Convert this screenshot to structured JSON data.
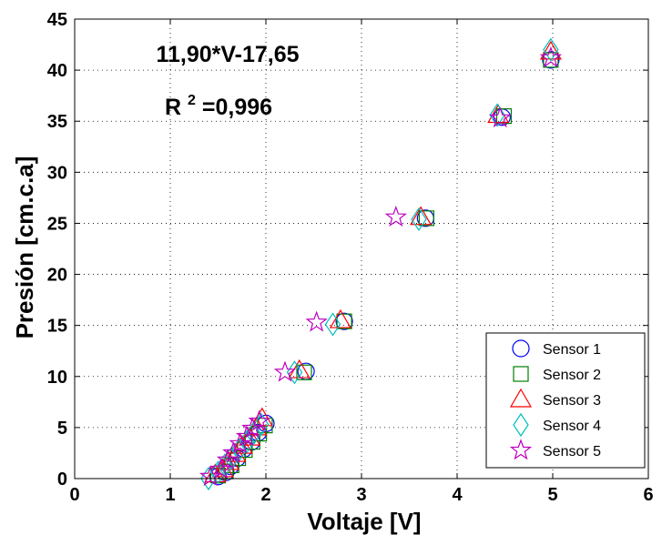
{
  "chart_data": {
    "type": "scatter",
    "title": "",
    "xlabel": "Voltaje [V]",
    "ylabel": "Presión [cm.c.a]",
    "xlim": [
      0,
      6
    ],
    "ylim": [
      0,
      45
    ],
    "xticks": [
      0,
      1,
      2,
      3,
      4,
      5,
      6
    ],
    "yticks": [
      0,
      5,
      10,
      15,
      20,
      25,
      30,
      35,
      40,
      45
    ],
    "x_tick_labels": [
      "0",
      "1",
      "2",
      "3",
      "4",
      "5",
      "6"
    ],
    "y_tick_labels": [
      "0",
      "5",
      "10",
      "15",
      "20",
      "25",
      "30",
      "35",
      "40",
      "45"
    ],
    "grid": true,
    "grid_style": "dotted",
    "legend_position": "bottom-right",
    "annotations": {
      "equation": "11,90*V-17,65",
      "r2_prefix": "R",
      "r2_exponent": "2",
      "r2_value": "=0,996"
    },
    "series": [
      {
        "name": "Sensor 1",
        "marker": "circle",
        "color": "#0000ff",
        "points": [
          [
            1.5,
            0.2
          ],
          [
            1.58,
            0.6
          ],
          [
            1.63,
            1.2
          ],
          [
            1.7,
            2.0
          ],
          [
            1.77,
            2.9
          ],
          [
            1.85,
            3.6
          ],
          [
            1.92,
            4.5
          ],
          [
            2.0,
            5.4
          ],
          [
            2.42,
            10.5
          ],
          [
            2.82,
            15.4
          ],
          [
            3.67,
            25.5
          ],
          [
            4.47,
            35.4
          ],
          [
            4.98,
            41.0
          ]
        ]
      },
      {
        "name": "Sensor 2",
        "marker": "square",
        "color": "#008000",
        "points": [
          [
            1.5,
            0.3
          ],
          [
            1.58,
            0.7
          ],
          [
            1.64,
            1.3
          ],
          [
            1.71,
            2.0
          ],
          [
            1.78,
            2.8
          ],
          [
            1.86,
            3.6
          ],
          [
            1.93,
            4.4
          ],
          [
            1.99,
            5.2
          ],
          [
            2.4,
            10.4
          ],
          [
            2.82,
            15.4
          ],
          [
            3.68,
            25.5
          ],
          [
            4.49,
            35.5
          ],
          [
            4.98,
            41.0
          ]
        ]
      },
      {
        "name": "Sensor 3",
        "marker": "triangle",
        "color": "#ff0000",
        "points": [
          [
            1.47,
            0.4
          ],
          [
            1.55,
            0.9
          ],
          [
            1.61,
            1.6
          ],
          [
            1.68,
            2.4
          ],
          [
            1.75,
            3.2
          ],
          [
            1.83,
            4.0
          ],
          [
            1.9,
            5.0
          ],
          [
            1.96,
            5.9
          ],
          [
            2.35,
            10.6
          ],
          [
            2.78,
            15.5
          ],
          [
            3.62,
            25.6
          ],
          [
            4.43,
            35.6
          ],
          [
            4.98,
            41.8
          ]
        ]
      },
      {
        "name": "Sensor 4",
        "marker": "diamond",
        "color": "#00bfbf",
        "points": [
          [
            1.4,
            0.0
          ],
          [
            1.5,
            0.6
          ],
          [
            1.57,
            1.3
          ],
          [
            1.64,
            2.0
          ],
          [
            1.72,
            2.8
          ],
          [
            1.8,
            3.6
          ],
          [
            1.87,
            4.4
          ],
          [
            1.95,
            5.3
          ],
          [
            2.3,
            10.4
          ],
          [
            2.7,
            15.1
          ],
          [
            3.6,
            25.4
          ],
          [
            4.42,
            35.6
          ],
          [
            4.98,
            42.0
          ]
        ]
      },
      {
        "name": "Sensor 5",
        "marker": "star",
        "color": "#bf00bf",
        "points": [
          [
            1.42,
            0.2
          ],
          [
            1.53,
            0.9
          ],
          [
            1.6,
            1.8
          ],
          [
            1.66,
            2.5
          ],
          [
            1.73,
            3.4
          ],
          [
            1.8,
            4.1
          ],
          [
            1.86,
            4.9
          ],
          [
            1.93,
            5.6
          ],
          [
            2.2,
            10.4
          ],
          [
            2.53,
            15.3
          ],
          [
            3.36,
            25.6
          ],
          [
            4.45,
            35.3
          ],
          [
            4.98,
            41.2
          ]
        ]
      }
    ]
  }
}
